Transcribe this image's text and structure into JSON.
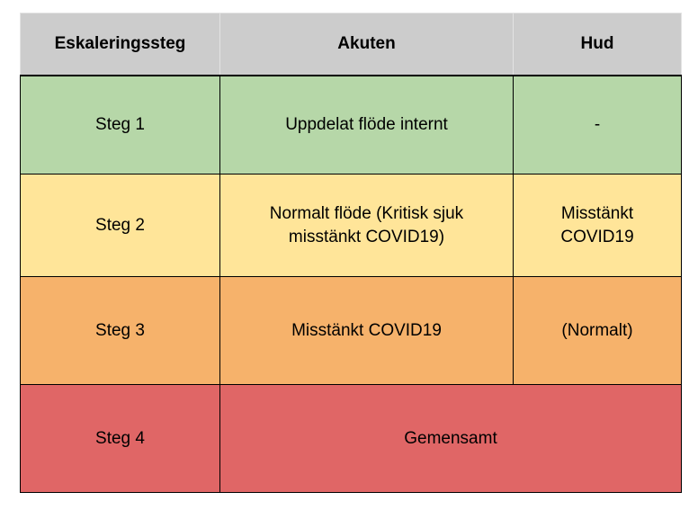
{
  "table": {
    "headers": [
      "Eskaleringssteg",
      "Akuten",
      "Hud"
    ],
    "rows": [
      {
        "steg": "Steg 1",
        "akuten": "Uppdelat flöde internt",
        "hud": "-",
        "color": "#b6d7a8"
      },
      {
        "steg": "Steg 2",
        "akuten": "Normalt flöde (Kritisk sjuk misstänkt COVID19)",
        "hud": "Misstänkt COVID19",
        "color": "#ffe599"
      },
      {
        "steg": "Steg 3",
        "akuten": "Misstänkt COVID19",
        "hud": "(Normalt)",
        "color": "#f6b26b"
      },
      {
        "steg": "Steg 4",
        "merged": "Gemensamt",
        "color": "#e06666"
      }
    ],
    "header_color": "#cccccc"
  }
}
